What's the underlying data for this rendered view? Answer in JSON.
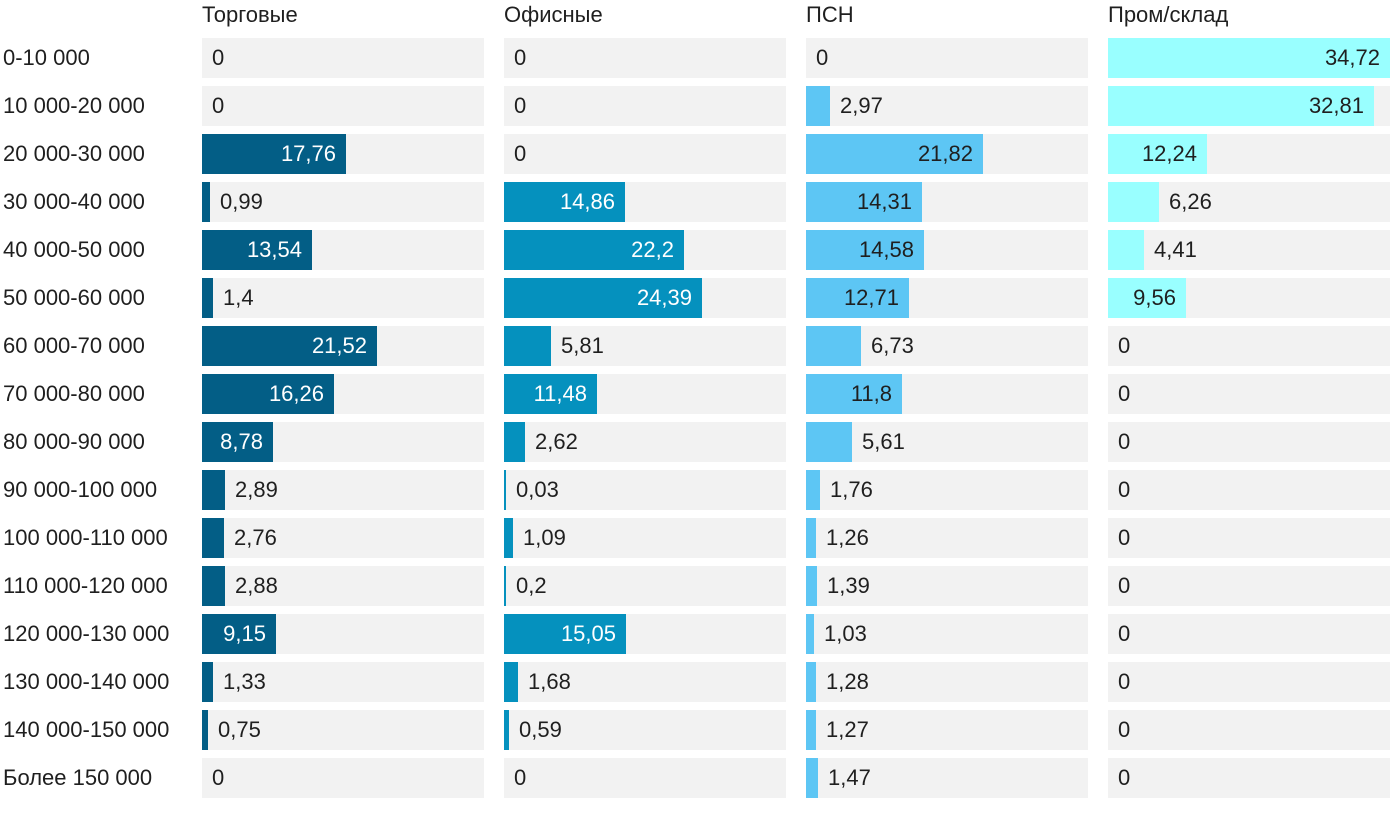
{
  "chart_data": {
    "type": "bar",
    "orientation": "horizontal",
    "layout": "small-multiples",
    "title": "",
    "xlabel": "",
    "ylabel": "",
    "xlim": [
      0,
      34.72
    ],
    "categories": [
      "0-10 000",
      "10 000-20 000",
      "20 000-30 000",
      "30 000-40 000",
      "40 000-50 000",
      "50 000-60 000",
      "60 000-70 000",
      "70 000-80 000",
      "80 000-90 000",
      "90 000-100 000",
      "100 000-110 000",
      "110 000-120 000",
      "120 000-130 000",
      "130 000-140 000",
      "140 000-150 000",
      "Более 150 000"
    ],
    "series": [
      {
        "name": "Торговые",
        "color": "#035e86",
        "label_color": "#ffffff",
        "values": [
          0,
          0,
          17.76,
          0.99,
          13.54,
          1.4,
          21.52,
          16.26,
          8.78,
          2.89,
          2.76,
          2.88,
          9.15,
          1.33,
          0.75,
          0
        ],
        "labels": [
          "0",
          "0",
          "17,76",
          "0,99",
          "13,54",
          "1,4",
          "21,52",
          "16,26",
          "8,78",
          "2,89",
          "2,76",
          "2,88",
          "9,15",
          "1,33",
          "0,75",
          "0"
        ]
      },
      {
        "name": "Офисные",
        "color": "#0591be",
        "label_color": "#ffffff",
        "values": [
          0,
          0,
          0,
          14.86,
          22.2,
          24.39,
          5.81,
          11.48,
          2.62,
          0.03,
          1.09,
          0.2,
          15.05,
          1.68,
          0.59,
          0
        ],
        "labels": [
          "0",
          "0",
          "0",
          "14,86",
          "22,2",
          "24,39",
          "5,81",
          "11,48",
          "2,62",
          "0,03",
          "1,09",
          "0,2",
          "15,05",
          "1,68",
          "0,59",
          "0"
        ]
      },
      {
        "name": "ПСН",
        "color": "#5dc6f4",
        "label_color": "#1f1f1f",
        "values": [
          0,
          2.97,
          21.82,
          14.31,
          14.58,
          12.71,
          6.73,
          11.8,
          5.61,
          1.76,
          1.26,
          1.39,
          1.03,
          1.28,
          1.27,
          1.47
        ],
        "labels": [
          "0",
          "2,97",
          "21,82",
          "14,31",
          "14,58",
          "12,71",
          "6,73",
          "11,8",
          "5,61",
          "1,76",
          "1,26",
          "1,39",
          "1,03",
          "1,28",
          "1,27",
          "1,47"
        ]
      },
      {
        "name": "Пром/склад",
        "color": "#99ffff",
        "label_color": "#1f1f1f",
        "values": [
          34.72,
          32.81,
          12.24,
          6.26,
          4.41,
          9.56,
          0,
          0,
          0,
          0,
          0,
          0,
          0,
          0,
          0,
          0
        ],
        "labels": [
          "34,72",
          "32,81",
          "12,24",
          "6,26",
          "4,41",
          "9,56",
          "0",
          "0",
          "0",
          "0",
          "0",
          "0",
          "0",
          "0",
          "0",
          "0"
        ]
      }
    ]
  }
}
